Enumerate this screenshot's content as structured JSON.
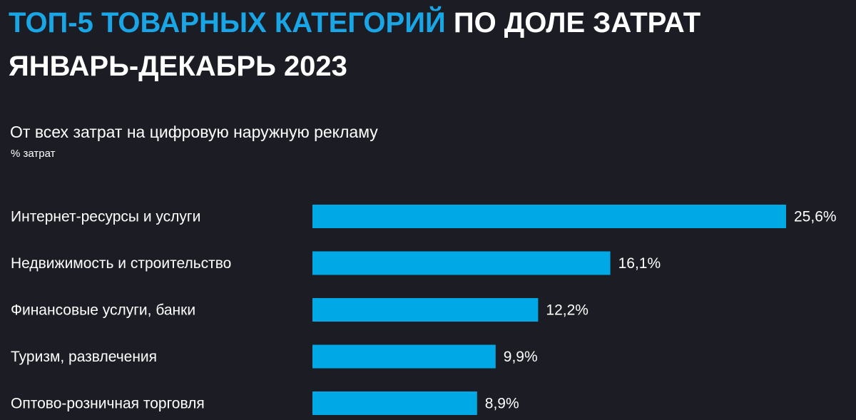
{
  "header": {
    "title_accent": "ТОП-5 ТОВАРНЫХ КАТЕГОРИЙ",
    "title_rest": " ПО ДОЛЕ ЗАТРАТ",
    "title_line2": "ЯНВАРЬ-ДЕКАБРЬ 2023",
    "subtitle": "От всех затрат на цифровую наружную рекламу",
    "unit": "% затрат"
  },
  "colors": {
    "background": "#1b1c24",
    "accent": "#19a6e6",
    "bar": "#00a9e6",
    "text": "#ffffff"
  },
  "chart_data": {
    "type": "bar",
    "orientation": "horizontal",
    "categories": [
      "Интернет-ресурсы и услуги",
      "Недвижимость и строительство",
      "Финансовые услуги, банки",
      "Туризм, развлечения",
      "Оптово-розничная торговля"
    ],
    "values": [
      25.6,
      16.1,
      12.2,
      9.9,
      8.9
    ],
    "value_labels": [
      "25,6%",
      "16,1%",
      "12,2%",
      "9,9%",
      "8,9%"
    ],
    "grid": false,
    "legend": "none"
  }
}
